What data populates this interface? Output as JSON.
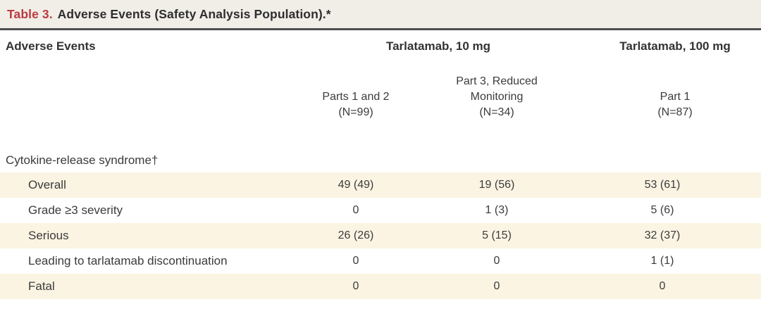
{
  "table": {
    "title": {
      "label": "Table 3.",
      "text": "Adverse Events (Safety Analysis Population).*"
    },
    "columns": {
      "row_header": "Adverse Events",
      "groups": [
        {
          "label": "Tarlatamab, 10 mg"
        },
        {
          "label": "Tarlatamab, 100 mg"
        }
      ],
      "subcolumns": [
        {
          "lines": [
            "Parts 1 and 2",
            "(N=99)"
          ]
        },
        {
          "lines": [
            "Part 3, Reduced",
            "Monitoring",
            "(N=34)"
          ]
        },
        {
          "lines": [
            "Part 1",
            "(N=87)"
          ]
        }
      ]
    },
    "section": {
      "label": "Cytokine-release syndrome†"
    },
    "rows": [
      {
        "label": "Overall",
        "values": [
          "49 (49)",
          "19 (56)",
          "53 (61)"
        ],
        "shaded": true
      },
      {
        "label": "Grade ≥3 severity",
        "values": [
          "0",
          "1 (3)",
          "5 (6)"
        ],
        "shaded": false
      },
      {
        "label": "Serious",
        "values": [
          "26 (26)",
          "5 (15)",
          "32 (37)"
        ],
        "shaded": true
      },
      {
        "label": "Leading to tarlatamab discontinuation",
        "values": [
          "0",
          "0",
          "1 (1)"
        ],
        "shaded": false
      },
      {
        "label": "Fatal",
        "values": [
          "0",
          "0",
          "0"
        ],
        "shaded": true
      }
    ],
    "colors": {
      "title_red": "#bd3a41",
      "title_bar_bg": "#f1eee7",
      "stripe_bg": "#fbf4e2",
      "rule": "#4e4e50",
      "text": "#3b3b3d",
      "background": "#ffffff"
    }
  }
}
